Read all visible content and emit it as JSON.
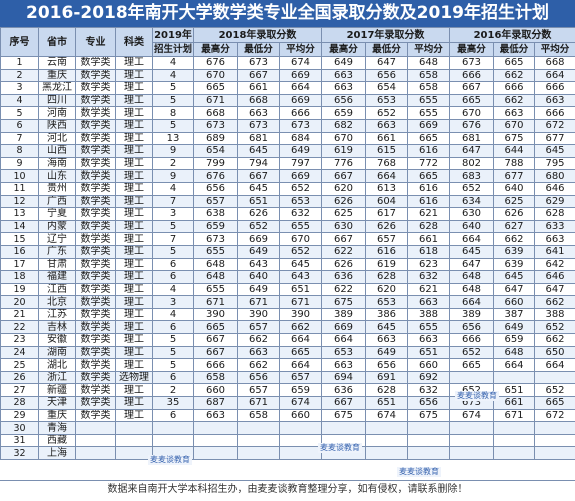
{
  "title": "2016-2018年南开大学数学类专业全国录取分数及2019年招生计划",
  "header": {
    "seq": "序号",
    "province": "省市",
    "major": "专业",
    "category": "科类",
    "plan_top": "2019年",
    "plan_bottom": "招生计划",
    "y2018": "2018年录取分数",
    "y2017": "2017年录取分数",
    "y2016": "2016年录取分数",
    "max": "最高分",
    "min": "最低分",
    "avg": "平均分"
  },
  "rows": [
    {
      "n": "1",
      "p": "云南",
      "m": "数学类",
      "c": "理工",
      "plan": "4",
      "a": [
        "676",
        "673",
        "674"
      ],
      "b": [
        "649",
        "647",
        "648"
      ],
      "d": [
        "673",
        "665",
        "668"
      ]
    },
    {
      "n": "2",
      "p": "重庆",
      "m": "数学类",
      "c": "理工",
      "plan": "4",
      "a": [
        "670",
        "667",
        "669"
      ],
      "b": [
        "663",
        "656",
        "658"
      ],
      "d": [
        "666",
        "662",
        "664"
      ]
    },
    {
      "n": "3",
      "p": "黑龙江",
      "m": "数学类",
      "c": "理工",
      "plan": "5",
      "a": [
        "665",
        "661",
        "664"
      ],
      "b": [
        "663",
        "654",
        "658"
      ],
      "d": [
        "667",
        "666",
        "666"
      ]
    },
    {
      "n": "4",
      "p": "四川",
      "m": "数学类",
      "c": "理工",
      "plan": "5",
      "a": [
        "671",
        "668",
        "669"
      ],
      "b": [
        "656",
        "653",
        "655"
      ],
      "d": [
        "665",
        "662",
        "663"
      ]
    },
    {
      "n": "5",
      "p": "河南",
      "m": "数学类",
      "c": "理工",
      "plan": "8",
      "a": [
        "668",
        "663",
        "666"
      ],
      "b": [
        "659",
        "652",
        "655"
      ],
      "d": [
        "670",
        "663",
        "666"
      ]
    },
    {
      "n": "6",
      "p": "陕西",
      "m": "数学类",
      "c": "理工",
      "plan": "5",
      "a": [
        "673",
        "673",
        "673"
      ],
      "b": [
        "682",
        "663",
        "669"
      ],
      "d": [
        "676",
        "670",
        "672"
      ]
    },
    {
      "n": "7",
      "p": "河北",
      "m": "数学类",
      "c": "理工",
      "plan": "13",
      "a": [
        "689",
        "681",
        "684"
      ],
      "b": [
        "670",
        "661",
        "665"
      ],
      "d": [
        "681",
        "675",
        "677"
      ]
    },
    {
      "n": "8",
      "p": "山西",
      "m": "数学类",
      "c": "理工",
      "plan": "9",
      "a": [
        "654",
        "645",
        "649"
      ],
      "b": [
        "619",
        "615",
        "616"
      ],
      "d": [
        "647",
        "644",
        "645"
      ]
    },
    {
      "n": "9",
      "p": "海南",
      "m": "数学类",
      "c": "理工",
      "plan": "2",
      "a": [
        "799",
        "794",
        "797"
      ],
      "b": [
        "776",
        "768",
        "772"
      ],
      "d": [
        "802",
        "788",
        "795"
      ]
    },
    {
      "n": "10",
      "p": "山东",
      "m": "数学类",
      "c": "理工",
      "plan": "9",
      "a": [
        "676",
        "667",
        "669"
      ],
      "b": [
        "667",
        "664",
        "665"
      ],
      "d": [
        "683",
        "677",
        "680"
      ]
    },
    {
      "n": "11",
      "p": "贵州",
      "m": "数学类",
      "c": "理工",
      "plan": "4",
      "a": [
        "656",
        "645",
        "652"
      ],
      "b": [
        "620",
        "613",
        "616"
      ],
      "d": [
        "652",
        "640",
        "646"
      ]
    },
    {
      "n": "12",
      "p": "广西",
      "m": "数学类",
      "c": "理工",
      "plan": "7",
      "a": [
        "657",
        "651",
        "653"
      ],
      "b": [
        "626",
        "604",
        "616"
      ],
      "d": [
        "634",
        "625",
        "629"
      ]
    },
    {
      "n": "13",
      "p": "宁夏",
      "m": "数学类",
      "c": "理工",
      "plan": "3",
      "a": [
        "638",
        "626",
        "632"
      ],
      "b": [
        "625",
        "617",
        "621"
      ],
      "d": [
        "630",
        "626",
        "628"
      ]
    },
    {
      "n": "14",
      "p": "内蒙",
      "m": "数学类",
      "c": "理工",
      "plan": "5",
      "a": [
        "659",
        "652",
        "655"
      ],
      "b": [
        "630",
        "626",
        "628"
      ],
      "d": [
        "640",
        "627",
        "633"
      ]
    },
    {
      "n": "15",
      "p": "辽宁",
      "m": "数学类",
      "c": "理工",
      "plan": "7",
      "a": [
        "673",
        "669",
        "670"
      ],
      "b": [
        "667",
        "657",
        "661"
      ],
      "d": [
        "664",
        "662",
        "663"
      ]
    },
    {
      "n": "16",
      "p": "广东",
      "m": "数学类",
      "c": "理工",
      "plan": "5",
      "a": [
        "655",
        "649",
        "652"
      ],
      "b": [
        "622",
        "616",
        "618"
      ],
      "d": [
        "645",
        "639",
        "641"
      ]
    },
    {
      "n": "17",
      "p": "甘肃",
      "m": "数学类",
      "c": "理工",
      "plan": "6",
      "a": [
        "648",
        "643",
        "645"
      ],
      "b": [
        "626",
        "619",
        "623"
      ],
      "d": [
        "647",
        "639",
        "642"
      ]
    },
    {
      "n": "18",
      "p": "福建",
      "m": "数学类",
      "c": "理工",
      "plan": "6",
      "a": [
        "648",
        "640",
        "643"
      ],
      "b": [
        "636",
        "628",
        "632"
      ],
      "d": [
        "648",
        "645",
        "646"
      ]
    },
    {
      "n": "19",
      "p": "江西",
      "m": "数学类",
      "c": "理工",
      "plan": "4",
      "a": [
        "655",
        "649",
        "651"
      ],
      "b": [
        "622",
        "620",
        "621"
      ],
      "d": [
        "648",
        "647",
        "647"
      ]
    },
    {
      "n": "20",
      "p": "北京",
      "m": "数学类",
      "c": "理工",
      "plan": "3",
      "a": [
        "671",
        "671",
        "671"
      ],
      "b": [
        "675",
        "653",
        "663"
      ],
      "d": [
        "664",
        "660",
        "662"
      ]
    },
    {
      "n": "21",
      "p": "江苏",
      "m": "数学类",
      "c": "理工",
      "plan": "4",
      "a": [
        "390",
        "390",
        "390"
      ],
      "b": [
        "389",
        "386",
        "388"
      ],
      "d": [
        "389",
        "387",
        "388"
      ]
    },
    {
      "n": "22",
      "p": "吉林",
      "m": "数学类",
      "c": "理工",
      "plan": "6",
      "a": [
        "665",
        "657",
        "662"
      ],
      "b": [
        "669",
        "645",
        "655"
      ],
      "d": [
        "656",
        "649",
        "652"
      ]
    },
    {
      "n": "23",
      "p": "安徽",
      "m": "数学类",
      "c": "理工",
      "plan": "5",
      "a": [
        "667",
        "662",
        "664"
      ],
      "b": [
        "664",
        "663",
        "663"
      ],
      "d": [
        "666",
        "659",
        "662"
      ]
    },
    {
      "n": "24",
      "p": "湖南",
      "m": "数学类",
      "c": "理工",
      "plan": "5",
      "a": [
        "667",
        "663",
        "665"
      ],
      "b": [
        "653",
        "649",
        "651"
      ],
      "d": [
        "652",
        "648",
        "650"
      ]
    },
    {
      "n": "25",
      "p": "湖北",
      "m": "数学类",
      "c": "理工",
      "plan": "5",
      "a": [
        "666",
        "662",
        "664"
      ],
      "b": [
        "663",
        "656",
        "660"
      ],
      "d": [
        "665",
        "664",
        "664"
      ]
    },
    {
      "n": "26",
      "p": "浙江",
      "m": "数学类",
      "c": "选物理",
      "plan": "6",
      "a": [
        "658",
        "656",
        "657"
      ],
      "b": [
        "694",
        "691",
        "692"
      ],
      "d": [
        "",
        "",
        ""
      ]
    },
    {
      "n": "27",
      "p": "新疆",
      "m": "数学类",
      "c": "理工",
      "plan": "2",
      "a": [
        "660",
        "657",
        "659"
      ],
      "b": [
        "636",
        "628",
        "632"
      ],
      "d": [
        "652",
        "651",
        "652"
      ]
    },
    {
      "n": "28",
      "p": "天津",
      "m": "数学类",
      "c": "理工",
      "plan": "35",
      "a": [
        "687",
        "671",
        "674"
      ],
      "b": [
        "667",
        "651",
        "656"
      ],
      "d": [
        "673",
        "661",
        "665"
      ]
    },
    {
      "n": "29",
      "p": "重庆",
      "m": "数学类",
      "c": "理工",
      "plan": "6",
      "a": [
        "663",
        "658",
        "660"
      ],
      "b": [
        "675",
        "674",
        "675"
      ],
      "d": [
        "674",
        "671",
        "672"
      ]
    },
    {
      "n": "30",
      "p": "青海",
      "m": "",
      "c": "",
      "plan": "",
      "a": [
        "",
        "",
        ""
      ],
      "b": [
        "",
        "",
        ""
      ],
      "d": [
        "",
        "",
        ""
      ]
    },
    {
      "n": "31",
      "p": "西藏",
      "m": "",
      "c": "",
      "plan": "",
      "a": [
        "",
        "",
        ""
      ],
      "b": [
        "",
        "",
        ""
      ],
      "d": [
        "",
        "",
        ""
      ]
    },
    {
      "n": "32",
      "p": "上海",
      "m": "",
      "c": "",
      "plan": "",
      "a": [
        "",
        "",
        ""
      ],
      "b": [
        "",
        "",
        ""
      ],
      "d": [
        "",
        "",
        ""
      ]
    }
  ],
  "watermarks": [
    "麦麦谈教育",
    "麦麦谈教育",
    "麦麦谈教育",
    "麦麦谈教育"
  ],
  "footer": "数据来自南开大学本科招生办，由麦麦谈教育整理分享，如有侵权，请联系删除！"
}
